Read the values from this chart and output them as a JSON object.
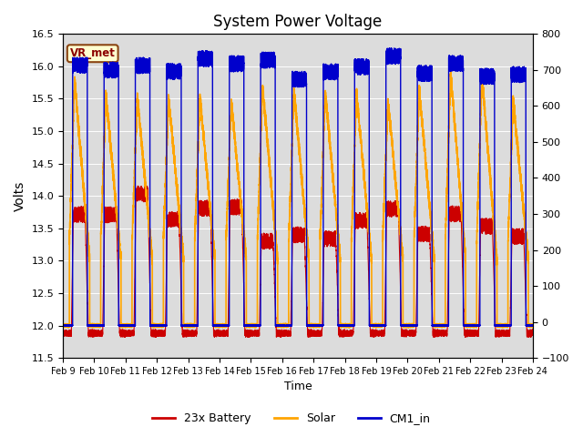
{
  "title": "System Power Voltage",
  "xlabel": "Time",
  "ylabel": "Volts",
  "ylim_left": [
    11.5,
    16.5
  ],
  "ylim_right": [
    -100,
    800
  ],
  "yticks_left": [
    11.5,
    12.0,
    12.5,
    13.0,
    13.5,
    14.0,
    14.5,
    15.0,
    15.5,
    16.0,
    16.5
  ],
  "yticks_right": [
    -100,
    0,
    100,
    200,
    300,
    400,
    500,
    600,
    700,
    800
  ],
  "xtick_labels": [
    "Feb 9",
    "Feb 10",
    "Feb 11",
    "Feb 12",
    "Feb 13",
    "Feb 14",
    "Feb 15",
    "Feb 16",
    "Feb 17",
    "Feb 18",
    "Feb 19",
    "Feb 20",
    "Feb 21",
    "Feb 22",
    "Feb 23",
    "Feb 24"
  ],
  "bg_color": "#dcdcdc",
  "fig_color": "#ffffff",
  "battery_color": "#cc0000",
  "solar_color": "#ffa500",
  "cm1_color": "#0000cc",
  "legend_labels": [
    "23x Battery",
    "Solar",
    "CM1_in"
  ],
  "vr_met_label": "VR_met",
  "total_hours": 360
}
